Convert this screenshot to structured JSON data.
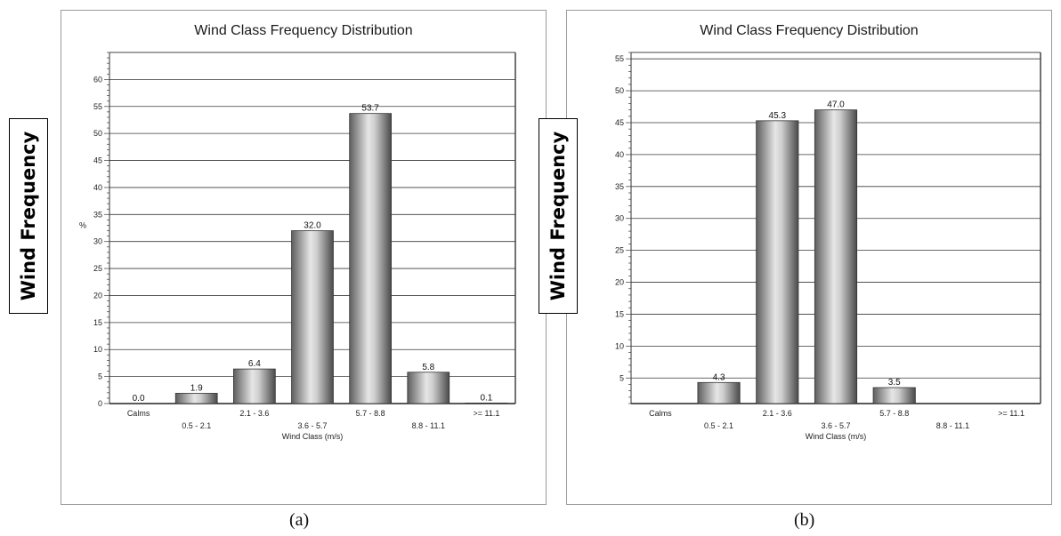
{
  "ylabel_box": "Wind Frequency",
  "chart_data": [
    {
      "type": "bar",
      "title": "Wind Class Frequency Distribution",
      "xlabel": "Wind Class (m/s)",
      "ylabel": "%",
      "categories": [
        "Calms",
        "0.5 - 2.1",
        "2.1 - 3.6",
        "3.6 - 5.7",
        "5.7 - 8.8",
        "8.8 - 11.1",
        ">= 11.1"
      ],
      "values": [
        0.0,
        1.9,
        6.4,
        32.0,
        53.7,
        5.8,
        0.1
      ],
      "value_labels": [
        "0.0",
        "1.9",
        "6.4",
        "32.0",
        "53.7",
        "5.8",
        "0.1"
      ],
      "ylim": [
        0,
        65
      ],
      "yticks": [
        0,
        5,
        10,
        15,
        20,
        25,
        30,
        35,
        40,
        45,
        50,
        55,
        60
      ],
      "grid": true,
      "caption": "(a)"
    },
    {
      "type": "bar",
      "title": "Wind Class Frequency Distribution",
      "xlabel": "Wind Class (m/s)",
      "ylabel": "",
      "categories": [
        "Calms",
        "0.5 - 2.1",
        "2.1 - 3.6",
        "3.6 - 5.7",
        "5.7 - 8.8",
        "8.8 - 11.1",
        ">= 11.1"
      ],
      "values": [
        0,
        4.3,
        45.3,
        47.0,
        3.5,
        0,
        0
      ],
      "value_labels": [
        "",
        "4.3",
        "45.3",
        "47.0",
        "3.5",
        "",
        ""
      ],
      "ylim": [
        1,
        56
      ],
      "yticks": [
        5,
        10,
        15,
        20,
        25,
        30,
        35,
        40,
        45,
        50,
        55
      ],
      "grid": true,
      "caption": "(b)"
    }
  ]
}
